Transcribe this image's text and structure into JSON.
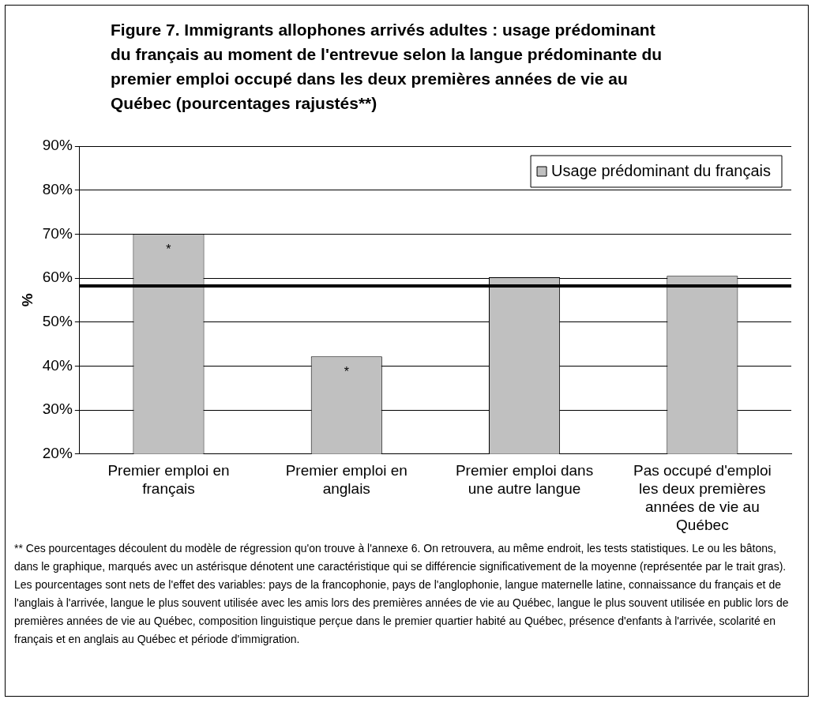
{
  "chart_data": {
    "type": "bar",
    "title": "Figure 7. Immigrants allophones arrivés adultes : usage prédominant du français au moment de l'entrevue selon la langue prédominante du premier emploi occupé dans les deux premières années de vie au Québec (pourcentages rajustés**)",
    "ylabel": "%",
    "categories": [
      "Premier emploi en français",
      "Premier emploi en anglais",
      "Premier emploi dans une autre langue",
      "Pas occupé d'emploi les deux premières années de vie au Québec"
    ],
    "series": [
      {
        "name": "Usage prédominant du français",
        "color": "#c0c0c0",
        "values": [
          70,
          42.2,
          60.2,
          60.5
        ]
      }
    ],
    "ylim": [
      20,
      90
    ],
    "yticks": [
      {
        "value": 20,
        "label": "20%"
      },
      {
        "value": 30,
        "label": "30%"
      },
      {
        "value": 40,
        "label": "40%"
      },
      {
        "value": 50,
        "label": "50%"
      },
      {
        "value": 60,
        "label": "60%"
      },
      {
        "value": 70,
        "label": "70%"
      },
      {
        "value": 80,
        "label": "80%"
      },
      {
        "value": 90,
        "label": "90%"
      }
    ],
    "grid": "y",
    "legend": "top right",
    "ref_lines": [
      {
        "axis": "y",
        "value": 58.2,
        "color": "#000000"
      }
    ],
    "annotations": [
      {
        "text": "*",
        "x": "Premier emploi en français",
        "y": 70
      },
      {
        "text": "*",
        "x": "Premier emploi en anglais",
        "y": 42.2
      },
      "** Ces pourcentages découlent du modèle de régression qu'on trouve à l'annexe 6. On retrouvera, au même endroit, les tests statistiques. Le ou les bâtons, dans le graphique, marqués avec un astérisque dénotent une caractéristique qui se différencie significativement de la moyenne (représentée par le trait gras). Les pourcentages sont nets de l'effet des variables: pays de la francophonie, pays de l'anglophonie, langue maternelle latine, connaissance du français et de l'anglais à l'arrivée, langue le plus souvent utilisée avec les amis lors des premières années de vie au Québec, langue le plus souvent utilisée en public lors de premières années de vie au Québec, composition linguistique perçue dans le premier quartier habité au Québec, présence d'enfants à l'arrivée, scolarité en français et en anglais au Québec et période d'immigration."
    ]
  }
}
